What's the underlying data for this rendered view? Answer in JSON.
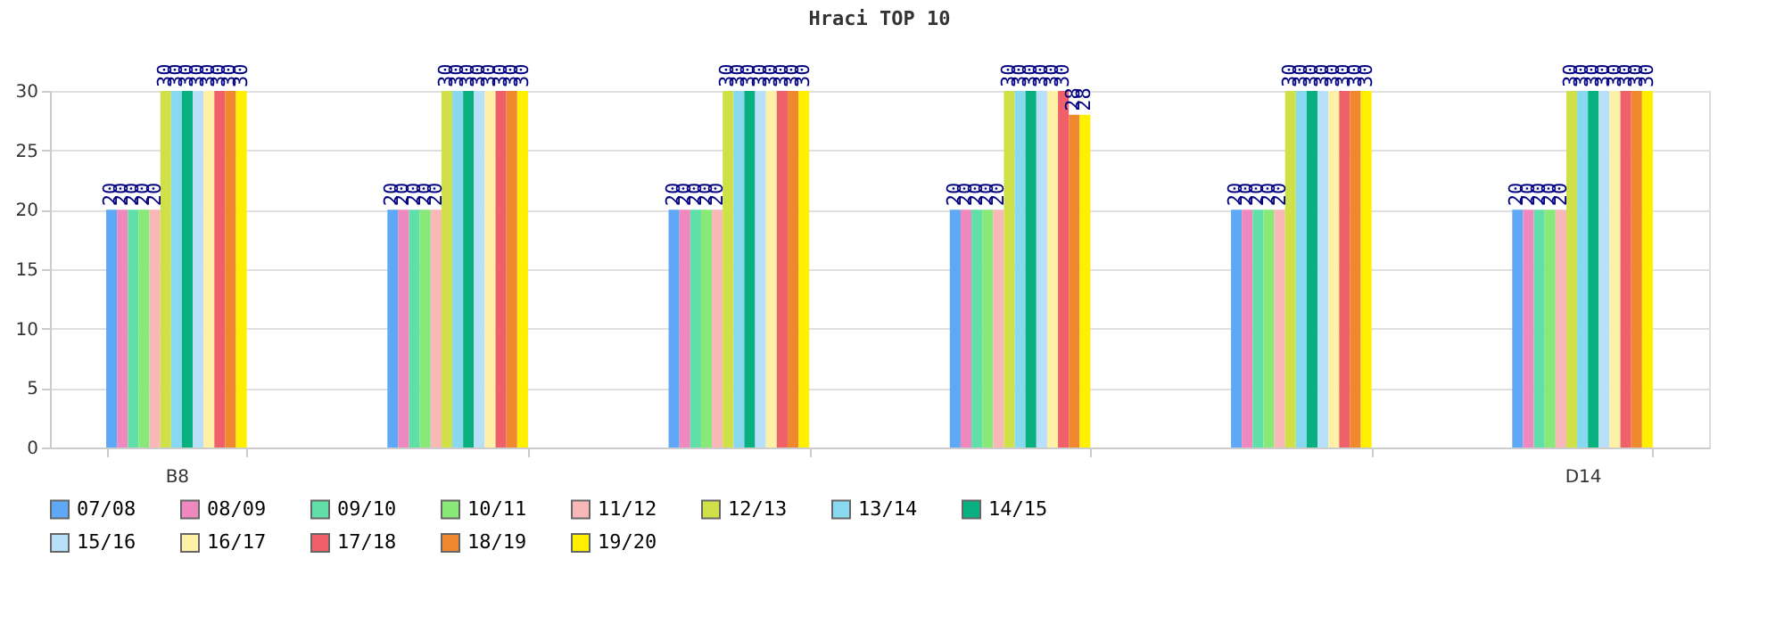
{
  "chart_data": {
    "type": "bar",
    "title": "Hraci TOP 10",
    "categories": [
      "B8",
      null,
      null,
      null,
      null,
      "D14"
    ],
    "ylim": [
      0,
      30
    ],
    "yticks": [
      0,
      5,
      10,
      15,
      20,
      25,
      30
    ],
    "grid": "y",
    "legend": "bottom",
    "data_labels": true,
    "series": [
      {
        "name": "07/08",
        "color": "#5fa8f5",
        "values": [
          20,
          20,
          20,
          20,
          20,
          20
        ]
      },
      {
        "name": "08/09",
        "color": "#f088c0",
        "values": [
          20,
          20,
          20,
          20,
          20,
          20
        ]
      },
      {
        "name": "09/10",
        "color": "#60e0a8",
        "values": [
          20,
          20,
          20,
          20,
          20,
          20
        ]
      },
      {
        "name": "10/11",
        "color": "#88e878",
        "values": [
          20,
          20,
          20,
          20,
          20,
          20
        ]
      },
      {
        "name": "11/12",
        "color": "#f8b8b8",
        "values": [
          20,
          20,
          20,
          20,
          20,
          20
        ]
      },
      {
        "name": "12/13",
        "color": "#d0e048",
        "values": [
          30,
          30,
          30,
          30,
          30,
          30
        ]
      },
      {
        "name": "13/14",
        "color": "#88d8f0",
        "values": [
          30,
          30,
          30,
          30,
          30,
          30
        ]
      },
      {
        "name": "14/15",
        "color": "#08b080",
        "values": [
          30,
          30,
          30,
          30,
          30,
          30
        ]
      },
      {
        "name": "15/16",
        "color": "#b8e0f8",
        "values": [
          30,
          30,
          30,
          30,
          30,
          30
        ]
      },
      {
        "name": "16/17",
        "color": "#fff0a8",
        "values": [
          30,
          30,
          30,
          30,
          30,
          30
        ]
      },
      {
        "name": "17/18",
        "color": "#f06068",
        "values": [
          30,
          30,
          30,
          30,
          30,
          30
        ]
      },
      {
        "name": "18/19",
        "color": "#f08830",
        "values": [
          30,
          30,
          30,
          28,
          30,
          30
        ]
      },
      {
        "name": "19/20",
        "color": "#fff000",
        "values": [
          30,
          30,
          30,
          28,
          30,
          30
        ]
      }
    ]
  }
}
